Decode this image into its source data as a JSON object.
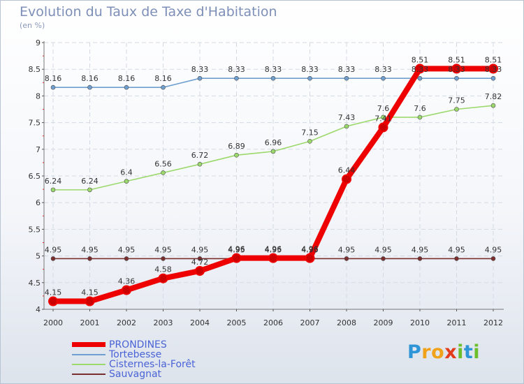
{
  "chart_data": {
    "type": "line",
    "title": "Evolution du Taux de Taxe d'Habitation",
    "subtitle": "(en %)",
    "xlabel": "",
    "ylabel": "(en %)",
    "ylim": [
      4,
      9
    ],
    "yticks": [
      "4",
      "4.5",
      "5",
      "5.5",
      "6",
      "6.5",
      "7",
      "7.5",
      "8",
      "8.5",
      "9"
    ],
    "categories": [
      "2000",
      "2001",
      "2002",
      "2003",
      "2004",
      "2005",
      "2006",
      "2007",
      "2008",
      "2009",
      "2010",
      "2011",
      "2012"
    ],
    "legend_position": "bottom-left",
    "series": [
      {
        "key": "tortebesse",
        "name": "Tortebesse",
        "color": "#6f9fcf",
        "values": [
          8.16,
          8.16,
          8.16,
          8.16,
          8.33,
          8.33,
          8.33,
          8.33,
          8.33,
          8.33,
          8.33,
          8.33,
          8.33
        ],
        "labels": [
          "8.16",
          "8.16",
          "8.16",
          "8.16",
          "8.33",
          "8.33",
          "8.33",
          "8.33",
          "8.33",
          "8.33",
          "8.33",
          "8.33",
          "8.33"
        ]
      },
      {
        "key": "cisternes",
        "name": "Cisternes-la-Forêt",
        "color": "#9cd96c",
        "values": [
          6.24,
          6.24,
          6.4,
          6.56,
          6.72,
          6.89,
          6.96,
          7.15,
          7.43,
          7.6,
          7.6,
          7.75,
          7.82
        ],
        "labels": [
          "6.24",
          "6.24",
          "6.4",
          "6.56",
          "6.72",
          "6.89",
          "6.96",
          "7.15",
          "7.43",
          "7.6",
          "7.6",
          "7.75",
          "7.82"
        ]
      },
      {
        "key": "sauvagnat",
        "name": "Sauvagnat",
        "color": "#7a2e2e",
        "values": [
          4.95,
          4.95,
          4.95,
          4.95,
          4.95,
          4.95,
          4.95,
          4.95,
          4.95,
          4.95,
          4.95,
          4.95,
          4.95
        ],
        "labels": [
          "4.95",
          "4.95",
          "4.95",
          "4.95",
          "4.95",
          "4.95",
          "4.95",
          "4.95",
          "4.95",
          "4.95",
          "4.95",
          "4.95",
          "4.95"
        ]
      },
      {
        "key": "prondines",
        "name": "PRONDINES",
        "color": "#ee0000",
        "values": [
          4.15,
          4.15,
          4.36,
          4.58,
          4.72,
          4.96,
          4.96,
          4.96,
          6.44,
          7.41,
          8.51,
          8.51,
          8.51
        ],
        "labels": [
          "4.15",
          "4.15",
          "4.36",
          "4.58",
          "4.72",
          "4.96",
          "4.96",
          "4.96",
          "6.44",
          "7.41",
          "8.51",
          "8.51",
          "8.51"
        ]
      }
    ],
    "legend": [
      {
        "key": "prondines",
        "name": "PRONDINES",
        "color": "#ee0000",
        "label_color": "#4a63d6"
      },
      {
        "key": "tortebesse",
        "name": "Tortebesse",
        "color": "#6f9fcf",
        "label_color": "#4a63d6"
      },
      {
        "key": "cisternes",
        "name": "Cisternes-la-Forêt",
        "color": "#9cd96c",
        "label_color": "#4a63d6"
      },
      {
        "key": "sauvagnat",
        "name": "Sauvagnat",
        "color": "#7a2e2e",
        "label_color": "#4a63d6"
      }
    ]
  },
  "logo": {
    "letters": [
      "P",
      "r",
      "o",
      "x",
      "i",
      "t",
      "i"
    ],
    "colors": [
      "#2e95d6",
      "#f0a21a",
      "#f0a21a",
      "#e23c1c",
      "#6cbf2a",
      "#2e95d6",
      "#6cbf2a"
    ]
  }
}
